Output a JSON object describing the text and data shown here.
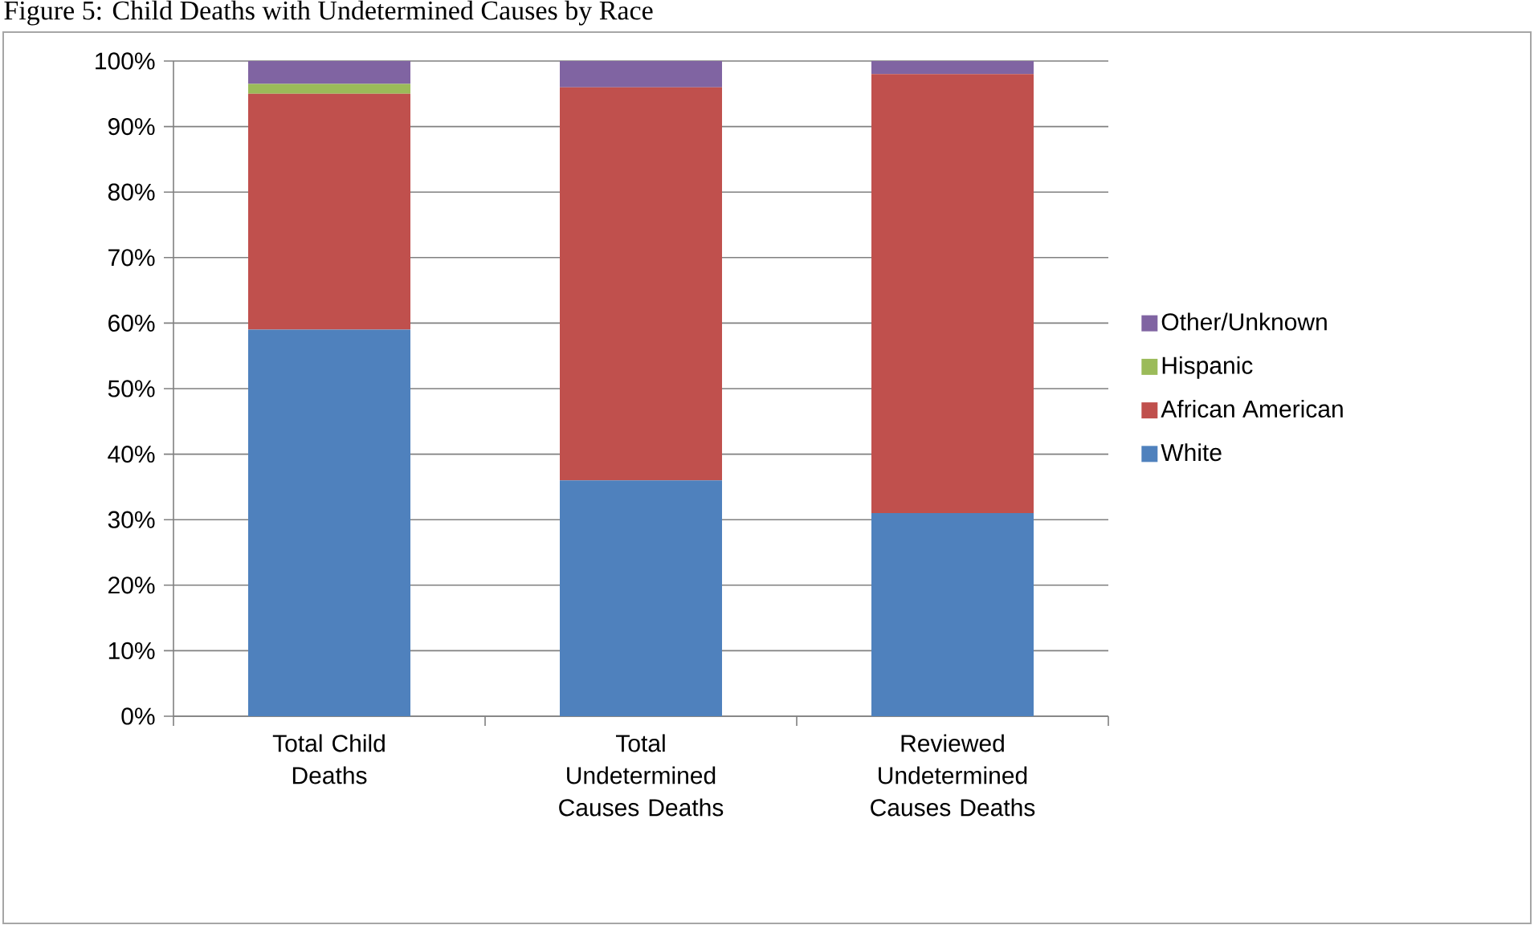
{
  "chart_data": {
    "type": "bar",
    "stacked": true,
    "title": "Figure 5: Child Deaths with Undetermined Causes by Race",
    "categories": [
      "Total Child Deaths",
      "Total Undetermined Causes Deaths",
      "Reviewed Undetermined Causes Deaths"
    ],
    "series": [
      {
        "name": "White",
        "color": "#4f81bd",
        "values": [
          59,
          36,
          31
        ]
      },
      {
        "name": "African American",
        "color": "#c0504d",
        "values": [
          36,
          60,
          67
        ]
      },
      {
        "name": "Hispanic",
        "color": "#9bbb59",
        "values": [
          1.5,
          0,
          0
        ]
      },
      {
        "name": "Other/Unknown",
        "color": "#8064a2",
        "values": [
          3.5,
          4,
          2
        ]
      }
    ],
    "ylim": [
      0,
      100
    ],
    "yticks": [
      {
        "value": 0,
        "label": "0%"
      },
      {
        "value": 10,
        "label": "10%"
      },
      {
        "value": 20,
        "label": "20%"
      },
      {
        "value": 30,
        "label": "30%"
      },
      {
        "value": 40,
        "label": "40%"
      },
      {
        "value": 50,
        "label": "50%"
      },
      {
        "value": 60,
        "label": "60%"
      },
      {
        "value": 70,
        "label": "70%"
      },
      {
        "value": 80,
        "label": "80%"
      },
      {
        "value": 90,
        "label": "90%"
      },
      {
        "value": 100,
        "label": "100%"
      }
    ],
    "grid": "y",
    "legend": "right"
  }
}
